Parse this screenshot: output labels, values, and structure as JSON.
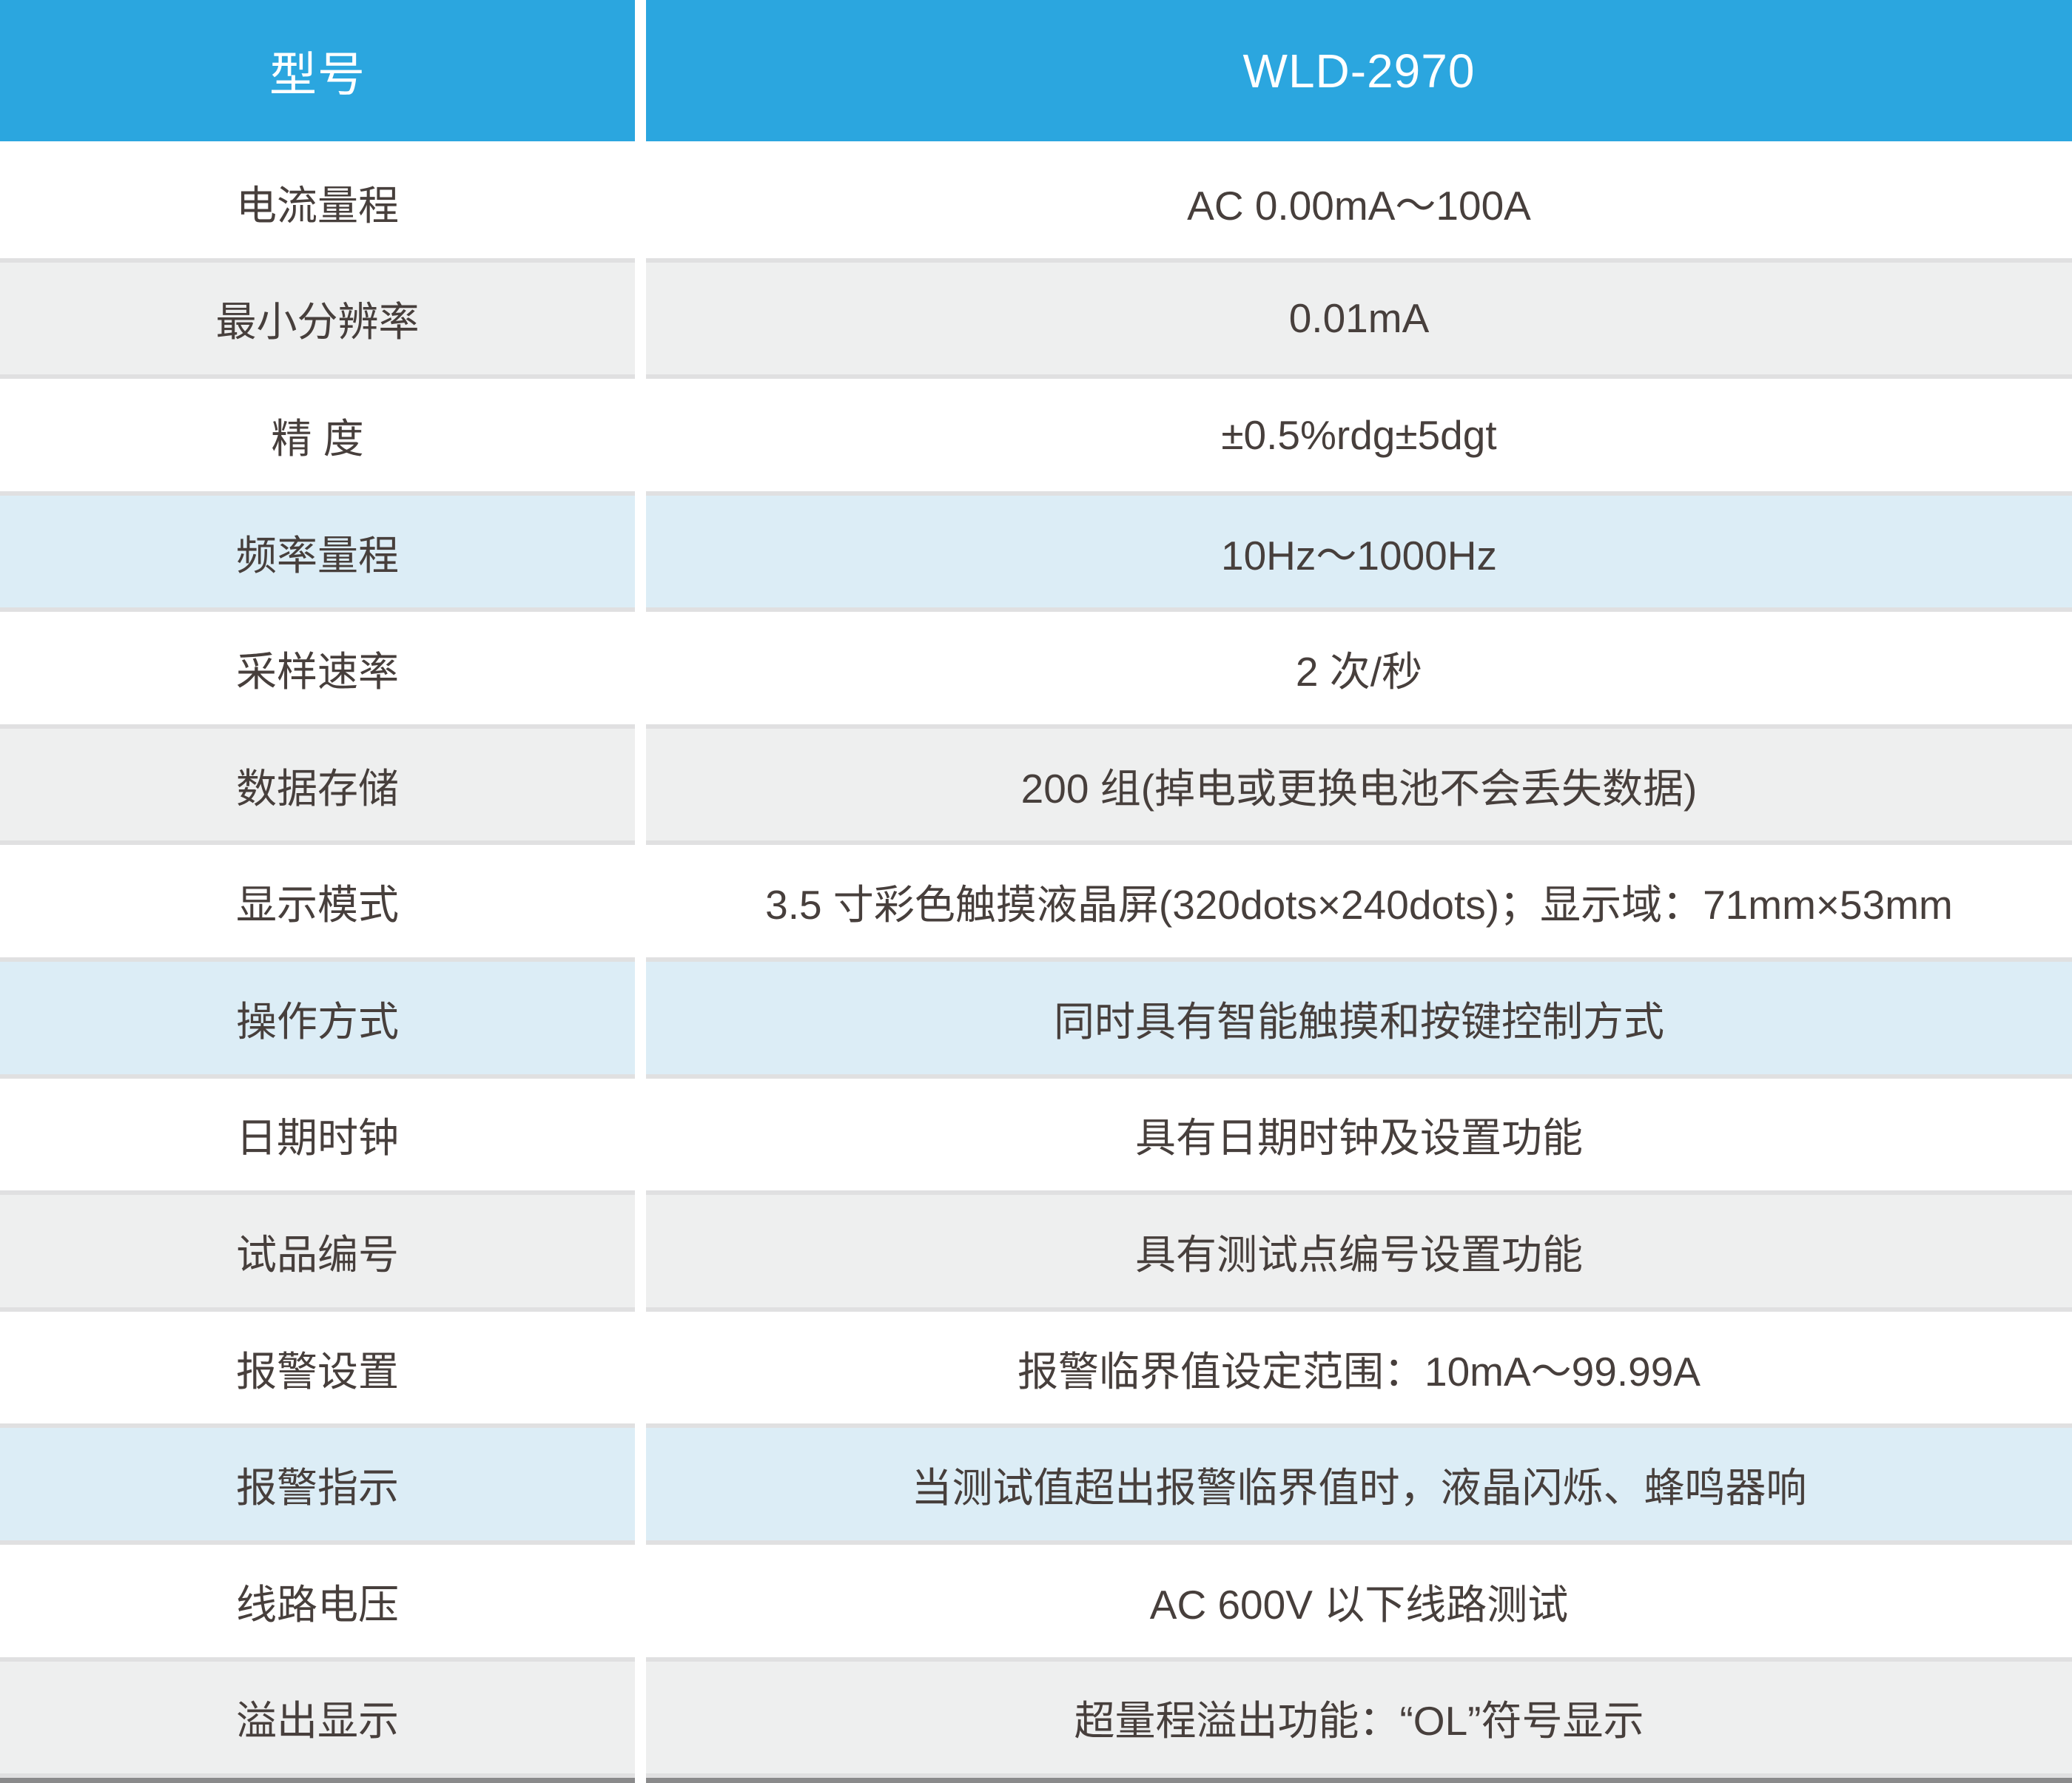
{
  "table": {
    "header": {
      "col1": "型号",
      "col2": "WLD-2970"
    },
    "rows": [
      {
        "label": "电流量程",
        "value": "AC 0.00mA～100A",
        "bg": "white"
      },
      {
        "label": "最小分辨率",
        "value": "0.01mA",
        "bg": "gray"
      },
      {
        "label": "精 度",
        "value": "±0.5%rdg±5dgt",
        "bg": "white"
      },
      {
        "label": "频率量程",
        "value": "10Hz～1000Hz",
        "bg": "blue"
      },
      {
        "label": "采样速率",
        "value": "2 次/秒",
        "bg": "white"
      },
      {
        "label": "数据存储",
        "value": "200 组(掉电或更换电池不会丢失数据)",
        "bg": "gray"
      },
      {
        "label": "显示模式",
        "value": "3.5 寸彩色触摸液晶屏(320dots×240dots)；显示域：71mm×53mm",
        "bg": "white"
      },
      {
        "label": "操作方式",
        "value": "同时具有智能触摸和按键控制方式",
        "bg": "blue"
      },
      {
        "label": "日期时钟",
        "value": "具有日期时钟及设置功能",
        "bg": "white"
      },
      {
        "label": "试品编号",
        "value": "具有测试点编号设置功能",
        "bg": "gray"
      },
      {
        "label": "报警设置",
        "value": "报警临界值设定范围：10mA～99.99A",
        "bg": "white"
      },
      {
        "label": "报警指示",
        "value": "当测试值超出报警临界值时，液晶闪烁、蜂鸣器响",
        "bg": "blue"
      },
      {
        "label": "线路电压",
        "value": "AC 600V 以下线路测试",
        "bg": "white"
      },
      {
        "label": "溢出显示",
        "value": "超量程溢出功能：“OL”符号显示",
        "bg": "gray"
      }
    ]
  },
  "colors": {
    "header_bg": "#2BA6DF",
    "row_gray": "#EEEFEF",
    "row_blue": "#DCEDF6",
    "row_white": "#FFFFFF",
    "separator": "#E0E0E1",
    "bottom_strip": "#8A8A8B",
    "text": "#473F3C",
    "header_text": "#FFFFFF"
  }
}
